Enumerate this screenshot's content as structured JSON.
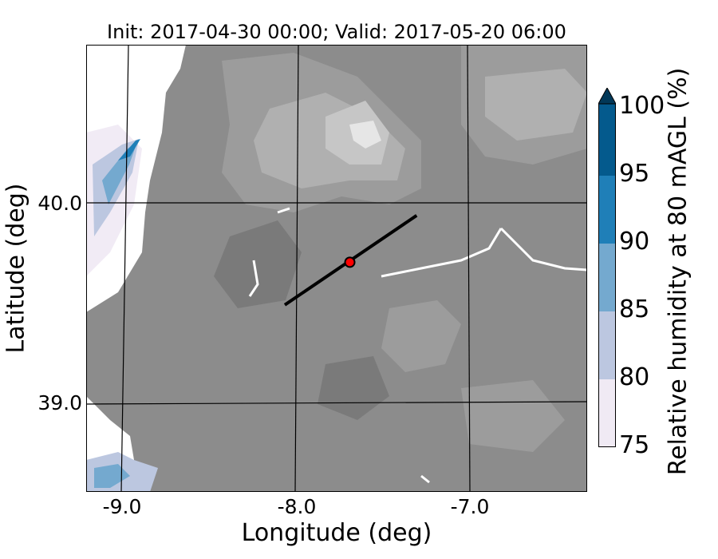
{
  "title": "Init: 2017-04-30 00:00; Valid: 2017-05-20 06:00",
  "axes": {
    "xlabel": "Longitude (deg)",
    "ylabel": "Latitude (deg)",
    "xticks": [
      "-9.0",
      "-8.0",
      "-7.0"
    ],
    "yticks": [
      "40.0",
      "39.0"
    ]
  },
  "colorbar": {
    "label": "Relative humidity at 80 mAGL (%)",
    "ticks": [
      "100",
      "95",
      "90",
      "85",
      "80",
      "75"
    ],
    "colors": [
      "#f0eaf4",
      "#bcc7e0",
      "#74a9cf",
      "#1f7fb8",
      "#045a8d",
      "#023858"
    ],
    "extend": "max"
  },
  "map": {
    "extent_lon": [
      -9.25,
      -6.4
    ],
    "extent_lat": [
      38.55,
      40.75
    ],
    "land_color": "#8c8c8c",
    "terrain_shades": [
      "#7a7a7a",
      "#8a8a8a",
      "#9c9c9c",
      "#b0b0b0",
      "#c6c6c6",
      "#e6e6e6"
    ],
    "marker": {
      "lon": -7.75,
      "lat": 39.68,
      "color": "#ff0000"
    },
    "transect": {
      "start_lon": -8.12,
      "start_lat": 39.47,
      "end_lon": -7.37,
      "end_lat": 39.91
    }
  }
}
